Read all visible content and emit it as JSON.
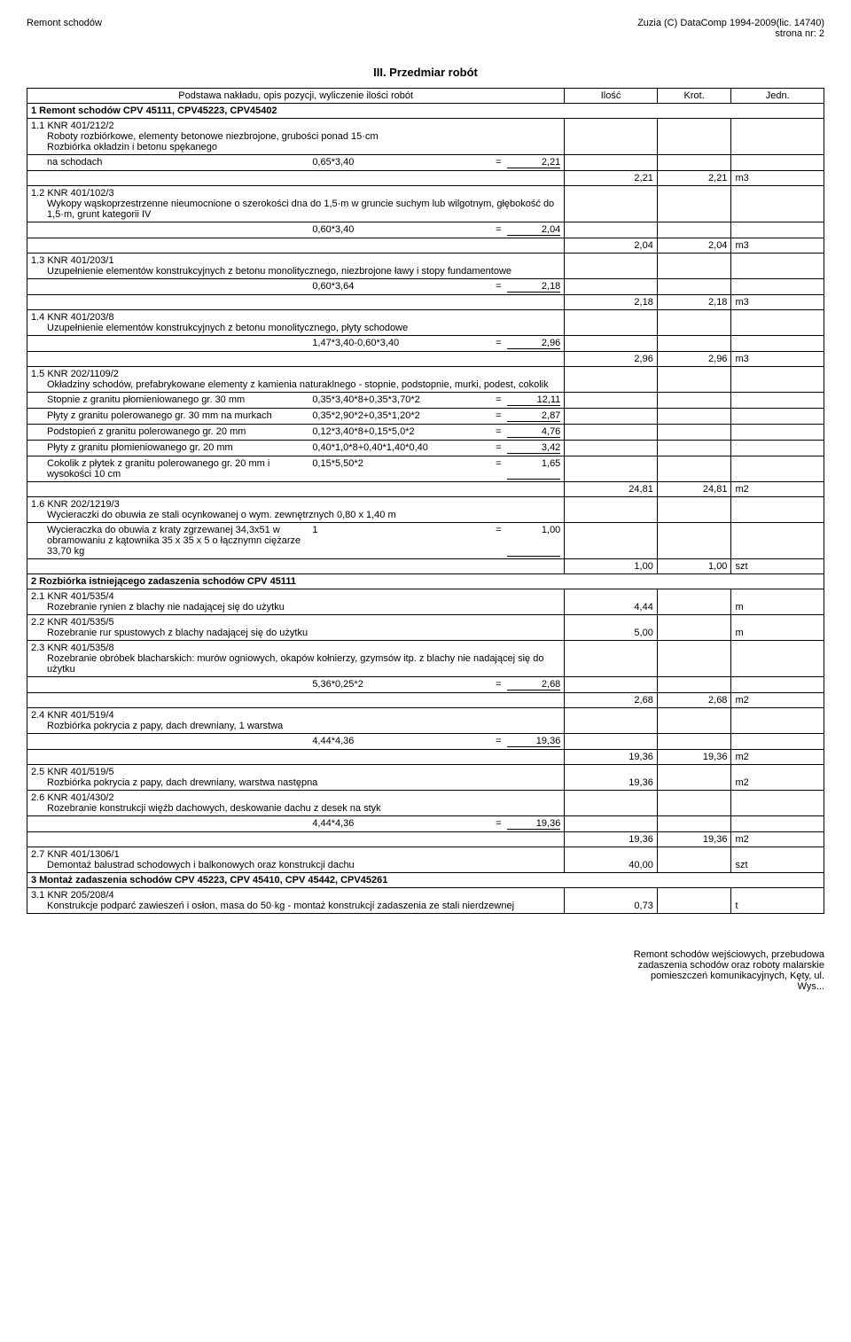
{
  "header": {
    "left": "Remont schodów",
    "right_line1": "Zuzia (C) DataComp 1994-2009(lic. 14740)",
    "right_line2": "strona nr:    2"
  },
  "section_title": "III. Przedmiar robót",
  "table_header": {
    "desc": "Podstawa nakładu, opis pozycji, wyliczenie ilości robót",
    "ilosc": "Ilość",
    "krot": "Krot.",
    "jedn": "Jedn."
  },
  "sections": [
    {
      "heading": "1 Remont schodów CPV 45111, CPV45223, CPV45402",
      "rows": [
        {
          "num": "1.1",
          "code": "KNR 401/212/2",
          "desc": "Roboty rozbiórkowe, elementy betonowe niezbrojone, grubości ponad 15·cm\nRozbiórka okładzin i betonu spękanego",
          "calcs": [
            {
              "label": "na schodach",
              "expr": "0,65*3,40",
              "eq": "=",
              "val": "2,21"
            }
          ],
          "total_ilosc": "2,21",
          "total_krot": "2,21",
          "total_jedn": "m3"
        },
        {
          "num": "1.2",
          "code": "KNR 401/102/3",
          "desc": "Wykopy wąskoprzestrzenne nieumocnione o szerokości dna do 1,5·m w gruncie suchym lub wilgotnym, głębokość do 1,5·m, grunt kategorii IV",
          "calcs": [
            {
              "label": "",
              "expr": "0,60*3,40",
              "eq": "=",
              "val": "2,04"
            }
          ],
          "total_ilosc": "2,04",
          "total_krot": "2,04",
          "total_jedn": "m3"
        },
        {
          "num": "1.3",
          "code": "KNR 401/203/1",
          "desc": "Uzupełnienie elementów konstrukcyjnych z betonu monolitycznego, niezbrojone ławy i stopy fundamentowe",
          "calcs": [
            {
              "label": "",
              "expr": "0,60*3,64",
              "eq": "=",
              "val": "2,18"
            }
          ],
          "total_ilosc": "2,18",
          "total_krot": "2,18",
          "total_jedn": "m3"
        },
        {
          "num": "1.4",
          "code": "KNR 401/203/8",
          "desc": "Uzupełnienie elementów konstrukcyjnych z betonu monolitycznego, płyty schodowe",
          "calcs": [
            {
              "label": "",
              "expr": "1,47*3,40-0,60*3,40",
              "eq": "=",
              "val": "2,96"
            }
          ],
          "total_ilosc": "2,96",
          "total_krot": "2,96",
          "total_jedn": "m3"
        },
        {
          "num": "1.5",
          "code": "KNR 202/1109/2",
          "desc": "Okładziny schodów, prefabrykowane elementy z kamienia naturaklnego - stopnie,  podstopnie, murki, podest, cokolik",
          "calcs": [
            {
              "label": "Stopnie z granitu płomieniowanego gr. 30 mm",
              "expr": "0,35*3,40*8+0,35*3,70*2",
              "eq": "=",
              "val": "12,11"
            },
            {
              "label": "Płyty z granitu polerowanego gr. 30 mm na murkach",
              "expr": "0,35*2,90*2+0,35*1,20*2",
              "eq": "=",
              "val": "2,87"
            },
            {
              "label": "Podstopień z granitu polerowanego gr. 20 mm",
              "expr": "0,12*3,40*8+0,15*5,0*2",
              "eq": "=",
              "val": "4,76"
            },
            {
              "label": "Płyty z granitu płomieniowanego gr. 20 mm",
              "expr": "0,40*1,0*8+0,40*1,40*0,40",
              "eq": "=",
              "val": "3,42"
            },
            {
              "label": "Cokolik z płytek z granitu polerowanego gr. 20 mm i wysokości 10 cm",
              "expr": "0,15*5,50*2",
              "eq": "=",
              "val": "1,65"
            }
          ],
          "total_ilosc": "24,81",
          "total_krot": "24,81",
          "total_jedn": "m2"
        },
        {
          "num": "1.6",
          "code": "KNR 202/1219/3",
          "desc": "Wycieraczki do obuwia ze stali ocynkowanej o wym. zewnętrznych 0,80 x 1,40 m",
          "calcs": [
            {
              "label": "Wycieraczka do obuwia z kraty zgrzewanej 34,3x51 w obramowaniu z kątownika 35 x 35 x 5 o łącznymn ciężarze 33,70 kg",
              "expr": "1",
              "eq": "=",
              "val": "1,00"
            }
          ],
          "total_ilosc": "1,00",
          "total_krot": "1,00",
          "total_jedn": "szt"
        }
      ]
    },
    {
      "heading": "2 Rozbiórka istniejącego zadaszenia schodów CPV 45111",
      "rows": [
        {
          "num": "2.1",
          "code": "KNR 401/535/4",
          "desc": "Rozebranie rynien z blachy nie nadającej się do użytku",
          "calcs": [],
          "total_ilosc": "4,44",
          "total_krot": "",
          "total_jedn": "m"
        },
        {
          "num": "2.2",
          "code": "KNR 401/535/5",
          "desc": "Rozebranie rur spustowych z blachy nadającej się do użytku",
          "calcs": [],
          "total_ilosc": "5,00",
          "total_krot": "",
          "total_jedn": "m"
        },
        {
          "num": "2.3",
          "code": "KNR 401/535/8",
          "desc": "Rozebranie obróbek blacharskich: murów ogniowych, okapów kołnierzy, gzymsów itp. z blachy nie nadającej się do użytku",
          "calcs": [
            {
              "label": "",
              "expr": "5,36*0,25*2",
              "eq": "=",
              "val": "2,68"
            }
          ],
          "total_ilosc": "2,68",
          "total_krot": "2,68",
          "total_jedn": "m2"
        },
        {
          "num": "2.4",
          "code": "KNR 401/519/4",
          "desc": "Rozbiórka pokrycia z papy, dach drewniany, 1 warstwa",
          "calcs": [
            {
              "label": "",
              "expr": "4,44*4,36",
              "eq": "=",
              "val": "19,36"
            }
          ],
          "total_ilosc": "19,36",
          "total_krot": "19,36",
          "total_jedn": "m2"
        },
        {
          "num": "2.5",
          "code": "KNR 401/519/5",
          "desc": "Rozbiórka pokrycia z papy, dach drewniany, warstwa następna",
          "calcs": [],
          "total_ilosc": "19,36",
          "total_krot": "",
          "total_jedn": "m2"
        },
        {
          "num": "2.6",
          "code": "KNR 401/430/2",
          "desc": "Rozebranie konstrukcji więźb dachowych, deskowanie dachu z desek na styk",
          "calcs": [
            {
              "label": "",
              "expr": "4,44*4,36",
              "eq": "=",
              "val": "19,36"
            }
          ],
          "total_ilosc": "19,36",
          "total_krot": "19,36",
          "total_jedn": "m2"
        },
        {
          "num": "2.7",
          "code": "KNR 401/1306/1",
          "desc": "Demontaż balustrad schodowych i balkonowych oraz konstrukcji dachu",
          "calcs": [],
          "total_ilosc": "40,00",
          "total_krot": "",
          "total_jedn": "szt"
        }
      ]
    },
    {
      "heading": "3 Montaż zadaszenia schodów CPV 45223, CPV 45410, CPV 45442, CPV45261",
      "rows": [
        {
          "num": "3.1",
          "code": "KNR 205/208/4",
          "desc": "Konstrukcje podparć zawieszeń i osłon, masa do 50·kg - montaż konstrukcji zadaszenia ze stali nierdzewnej",
          "calcs": [],
          "total_ilosc": "0,73",
          "total_krot": "",
          "total_jedn": "t"
        }
      ]
    }
  ],
  "footer": {
    "line1": "Remont schodów wejściowych, przebudowa",
    "line2": "zadaszenia schodów oraz roboty malarskie",
    "line3": "pomieszczeń komunikacyjnych, Kęty, ul.",
    "line4": "Wys..."
  }
}
